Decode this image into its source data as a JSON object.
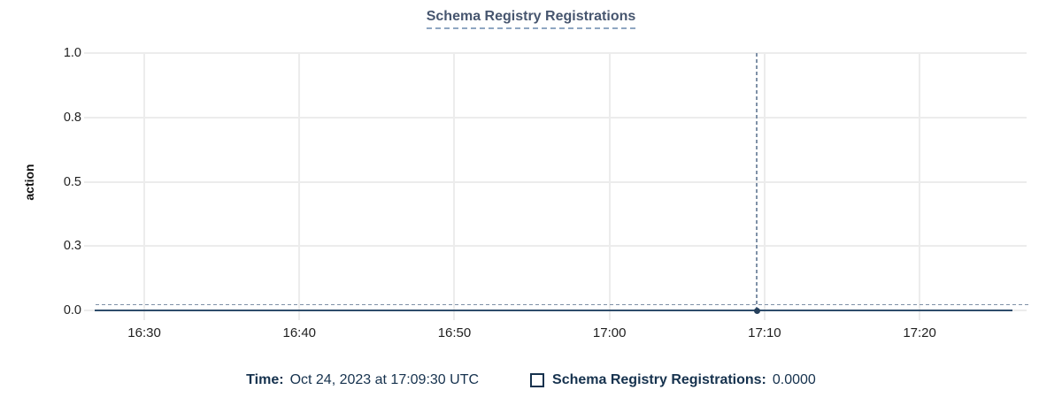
{
  "chart_data": {
    "type": "line",
    "title": "Schema Registry Registrations",
    "ylabel": "action",
    "ylim": [
      0,
      1
    ],
    "grid": true,
    "y_ticks": [
      {
        "label": "1.0",
        "value": 1.0
      },
      {
        "label": "0.8",
        "value": 0.75
      },
      {
        "label": "0.5",
        "value": 0.5
      },
      {
        "label": "0.3",
        "value": 0.25
      },
      {
        "label": "0.0",
        "value": 0.0
      }
    ],
    "x_axis": {
      "unit": "minutes_after_16:00",
      "range": [
        26.4,
        86.9
      ],
      "ticks": [
        {
          "label": "16:30",
          "value": 30
        },
        {
          "label": "16:40",
          "value": 40
        },
        {
          "label": "16:50",
          "value": 50
        },
        {
          "label": "17:00",
          "value": 60
        },
        {
          "label": "17:10",
          "value": 70
        },
        {
          "label": "17:20",
          "value": 80
        }
      ]
    },
    "series": [
      {
        "name": "Schema Registry Registrations",
        "color": "#2F4D6B",
        "constant_value": 0,
        "x_start": 26.8,
        "x_end": 86.0
      }
    ],
    "hover": {
      "x": 69.5,
      "y": 0,
      "time": "17:09:30"
    }
  },
  "legend": {
    "time_label": "Time:",
    "time_value": "Oct 24, 2023 at 17:09:30 UTC",
    "series_label": "Schema Registry Registrations:",
    "series_value": "0.0000"
  },
  "colors": {
    "title": "#47566F",
    "titleUnderline": "#8FA6C2",
    "legendText": "#16324E",
    "line": "#2F4D6B",
    "dot": "#26405C",
    "crosshair": "#7F91A7",
    "grid": "#ECECEC",
    "tickLabel": "#1F1F1F",
    "axisLabel": "#111111"
  }
}
